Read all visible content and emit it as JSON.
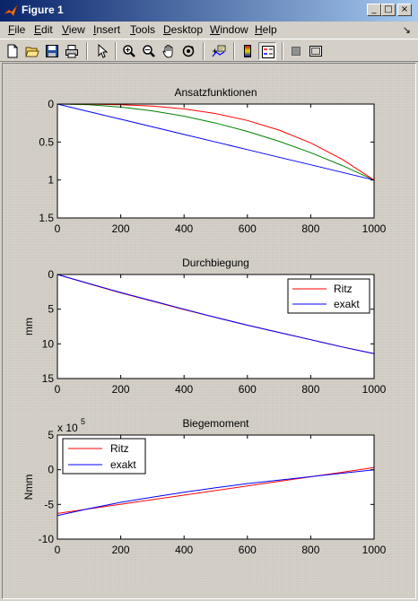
{
  "window": {
    "title": "Figure 1",
    "minimize_glyph": "_",
    "maximize_glyph": "□",
    "close_glyph": "×"
  },
  "menu": {
    "items": [
      {
        "label": "File",
        "key": "F"
      },
      {
        "label": "Edit",
        "key": "E"
      },
      {
        "label": "View",
        "key": "V"
      },
      {
        "label": "Insert",
        "key": "I"
      },
      {
        "label": "Tools",
        "key": "T"
      },
      {
        "label": "Desktop",
        "key": "D"
      },
      {
        "label": "Window",
        "key": "W"
      },
      {
        "label": "Help",
        "key": "H"
      }
    ],
    "dock_arrow": "↘"
  },
  "toolbar": {
    "buttons": [
      "new-file-icon",
      "open-folder-icon",
      "save-icon",
      "print-icon",
      "select-arrow-icon",
      "zoom-in-icon",
      "zoom-out-icon",
      "pan-hand-icon",
      "rotate-3d-icon",
      "data-cursor-icon",
      "colorbar-icon",
      "legend-icon",
      "hide-plot-tools-icon",
      "show-plot-tools-icon"
    ]
  },
  "colors": {
    "ritz": "#ff0000",
    "exakt": "#0000ff",
    "green": "#008000"
  },
  "chart_data": [
    {
      "type": "line",
      "title": "Ansatzfunktionen",
      "xlabel": "",
      "ylabel": "",
      "xlim": [
        0,
        1000
      ],
      "ylim": [
        0,
        1.5
      ],
      "y_reversed": true,
      "xticks": [
        "0",
        "200",
        "400",
        "600",
        "800",
        "1000"
      ],
      "yticks": [
        "0",
        "0.5",
        "1",
        "1.5"
      ],
      "series": [
        {
          "color": "#0000ff",
          "x": [
            0,
            100,
            200,
            300,
            400,
            500,
            600,
            700,
            800,
            900,
            1000
          ],
          "y": [
            0,
            0.1,
            0.2,
            0.3,
            0.4,
            0.5,
            0.6,
            0.7,
            0.8,
            0.9,
            1.0
          ]
        },
        {
          "color": "#008000",
          "x": [
            0,
            100,
            200,
            300,
            400,
            500,
            600,
            700,
            800,
            900,
            1000
          ],
          "y": [
            0,
            0.01,
            0.04,
            0.09,
            0.16,
            0.25,
            0.36,
            0.49,
            0.64,
            0.81,
            1.0
          ]
        },
        {
          "color": "#ff0000",
          "x": [
            0,
            100,
            200,
            300,
            400,
            500,
            600,
            700,
            800,
            900,
            1000
          ],
          "y": [
            0,
            0.001,
            0.008,
            0.027,
            0.064,
            0.125,
            0.216,
            0.343,
            0.512,
            0.729,
            1.0
          ]
        }
      ]
    },
    {
      "type": "line",
      "title": "Durchbiegung",
      "xlabel": "",
      "ylabel": "mm",
      "xlim": [
        0,
        1000
      ],
      "ylim": [
        0,
        15
      ],
      "y_reversed": true,
      "xticks": [
        "0",
        "200",
        "400",
        "600",
        "800",
        "1000"
      ],
      "yticks": [
        "0",
        "5",
        "10",
        "15"
      ],
      "legend": {
        "position": "top-right",
        "entries": [
          "Ritz",
          "exakt"
        ]
      },
      "series": [
        {
          "name": "Ritz",
          "color": "#ff0000",
          "x": [
            0,
            100,
            200,
            300,
            400,
            500,
            600,
            700,
            800,
            900,
            1000
          ],
          "y": [
            0,
            1.35,
            2.65,
            3.85,
            5.05,
            6.2,
            7.3,
            8.35,
            9.4,
            10.45,
            11.4
          ]
        },
        {
          "name": "exakt",
          "color": "#0000ff",
          "x": [
            0,
            100,
            200,
            300,
            400,
            500,
            600,
            700,
            800,
            900,
            1000
          ],
          "y": [
            0,
            1.3,
            2.6,
            3.8,
            5.0,
            6.2,
            7.3,
            8.35,
            9.4,
            10.45,
            11.4
          ]
        }
      ]
    },
    {
      "type": "line",
      "title": "Biegemoment",
      "xlabel": "",
      "ylabel": "Nmm",
      "xlim": [
        0,
        1000
      ],
      "ylim": [
        -10,
        5
      ],
      "y_multiplier": "x 10",
      "y_exponent": "5",
      "xticks": [
        "0",
        "200",
        "400",
        "600",
        "800",
        "1000"
      ],
      "yticks": [
        "5",
        "0",
        "-5",
        "-10"
      ],
      "legend": {
        "position": "top-left",
        "entries": [
          "Ritz",
          "exakt"
        ]
      },
      "series": [
        {
          "name": "Ritz",
          "color": "#ff0000",
          "x": [
            0,
            1000
          ],
          "y": [
            -6.3,
            0.3
          ]
        },
        {
          "name": "exakt",
          "color": "#0000ff",
          "x": [
            0,
            100,
            200,
            300,
            400,
            500,
            600,
            700,
            800,
            900,
            1000
          ],
          "y": [
            -6.6,
            -5.6,
            -4.7,
            -3.95,
            -3.25,
            -2.6,
            -2.0,
            -1.5,
            -1.0,
            -0.5,
            0
          ]
        }
      ]
    }
  ]
}
